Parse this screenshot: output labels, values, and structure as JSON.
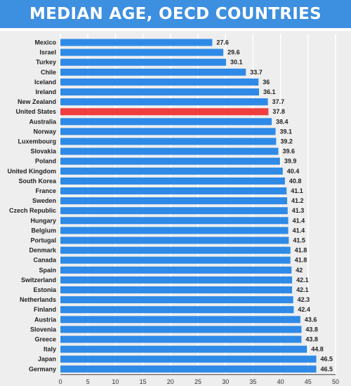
{
  "chart_data": {
    "type": "bar",
    "orientation": "horizontal",
    "title": "MEDIAN AGE, OECD COUNTRIES",
    "xlabel": "",
    "ylabel": "",
    "xlim": [
      0,
      50
    ],
    "ticks": [
      "0",
      "5",
      "10",
      "15",
      "20",
      "25",
      "30",
      "35",
      "40",
      "45",
      "50"
    ],
    "grid": true,
    "categories": [
      "Mexico",
      "Israel",
      "Turkey",
      "Chile",
      "Iceland",
      "Ireland",
      "New Zealand",
      "United States",
      "Australia",
      "Norway",
      "Luxembourg",
      "Slovakia",
      "Poland",
      "United Kingdom",
      "South Korea",
      "France",
      "Sweden",
      "Czech Republic",
      "Hungary",
      "Belgium",
      "Portugal",
      "Denmark",
      "Canada",
      "Spain",
      "Switzerland",
      "Estonia",
      "Netherlands",
      "Finland",
      "Austria",
      "Slovenia",
      "Greece",
      "Italy",
      "Japan",
      "Germany"
    ],
    "values": [
      27.6,
      29.6,
      30.1,
      33.7,
      36,
      36.1,
      37.7,
      37.8,
      38.4,
      39.1,
      39.2,
      39.6,
      39.9,
      40.4,
      40.8,
      41.1,
      41.2,
      41.3,
      41.4,
      41.4,
      41.5,
      41.8,
      41.8,
      42,
      42.1,
      42.1,
      42.3,
      42.4,
      43.6,
      43.8,
      43.8,
      44.8,
      46.5,
      46.5
    ],
    "value_labels": [
      "27.6",
      "29.6",
      "30.1",
      "33.7",
      "36",
      "36.1",
      "37.7",
      "37.8",
      "38.4",
      "39.1",
      "39.2",
      "39.6",
      "39.9",
      "40.4",
      "40.8",
      "41.1",
      "41.2",
      "41.3",
      "41.4",
      "41.4",
      "41.5",
      "41.8",
      "41.8",
      "42",
      "42.1",
      "42.1",
      "42.3",
      "42.4",
      "43.6",
      "43.8",
      "43.8",
      "44.8",
      "46.5",
      "46.5"
    ],
    "highlight": "United States",
    "colors": {
      "bar": "#2e8ae6",
      "highlight": "#ef3e3e",
      "header": "#3d8fe0",
      "background": "#eeeeee",
      "grid": "#ffffff"
    }
  }
}
